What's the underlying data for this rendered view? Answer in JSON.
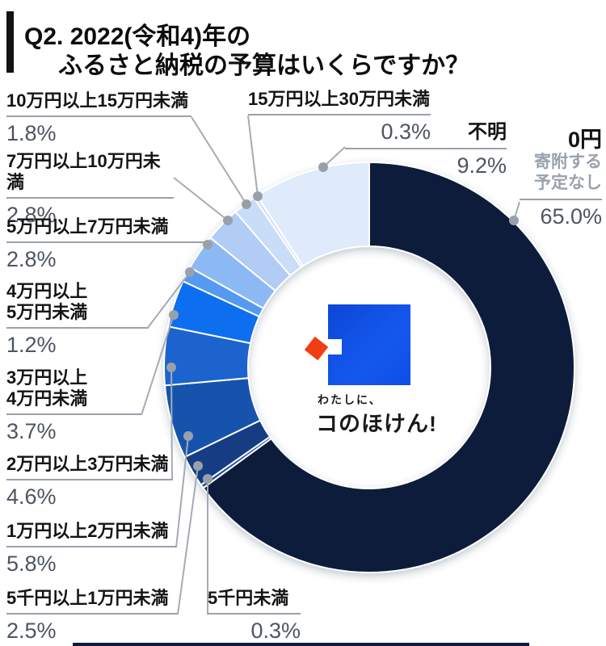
{
  "title": {
    "line1": "Q2. 2022(令和4)年の",
    "line2": "ふるさと納税の予算はいくらですか？"
  },
  "center_logo": {
    "tagline": "わたしに、",
    "brand": "コのほけん!"
  },
  "chart_data": {
    "type": "pie",
    "variant": "donut",
    "title": "2022(令和4)年のふるさと納税の予算",
    "unit": "%",
    "total": 100.0,
    "start_angle_deg": 0,
    "direction": "clockwise",
    "legend_position": "callouts-around-donut",
    "segments": [
      {
        "label": "0円",
        "sublabel": "寄附する\n予定なし",
        "value": 65.0,
        "display": "65.0%",
        "color": "#0e1c3a"
      },
      {
        "label": "5千円未満",
        "value": 0.3,
        "display": "0.3%",
        "color": "#1c4d9d"
      },
      {
        "label": "5千円以上1万円未満",
        "value": 2.5,
        "display": "2.5%",
        "color": "#123e83"
      },
      {
        "label": "1万円以上2万円未満",
        "value": 5.8,
        "display": "5.8%",
        "color": "#1453ac"
      },
      {
        "label": "2万円以上3万円未満",
        "value": 4.6,
        "display": "4.6%",
        "color": "#1b64cd"
      },
      {
        "label": "3万円以上\n4万円未満",
        "value": 3.7,
        "display": "3.7%",
        "color": "#0d6ef0"
      },
      {
        "label": "4万円以上\n5万円未満",
        "value": 1.2,
        "display": "1.2%",
        "color": "#539af0"
      },
      {
        "label": "5万円以上7万円未満",
        "value": 2.8,
        "display": "2.8%",
        "color": "#8cb9f3"
      },
      {
        "label": "7万円以上10万円未満",
        "value": 2.8,
        "display": "2.8%",
        "color": "#b1ccf5"
      },
      {
        "label": "10万円以上15万円未満",
        "value": 1.8,
        "display": "1.8%",
        "color": "#c9dcf8"
      },
      {
        "label": "15万円以上30万円未満",
        "value": 0.3,
        "display": "0.3%",
        "color": "#d4e2f9"
      },
      {
        "label": "不明",
        "value": 9.2,
        "display": "9.2%",
        "color": "#dfeafb"
      }
    ]
  }
}
